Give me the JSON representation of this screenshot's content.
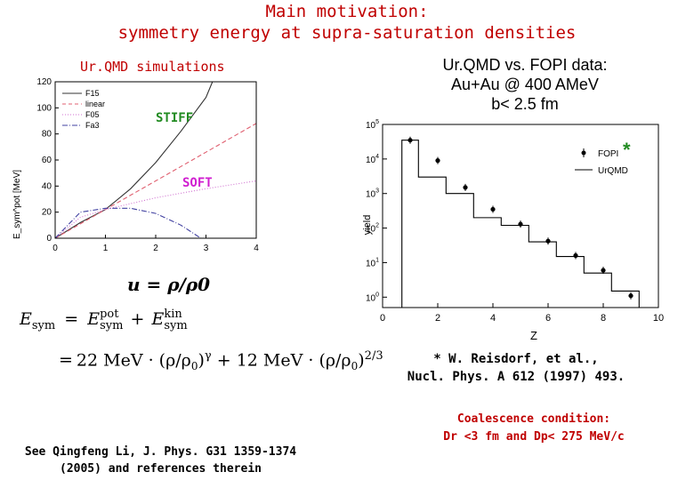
{
  "title": {
    "line1": "Main motivation:",
    "line2": "symmetry energy at supra-saturation densities"
  },
  "left_heading": "Ur.QMD simulations",
  "fopi_heading": {
    "line1": "Ur.QMD vs. FOPI data:",
    "line2": "Au+Au @ 400 AMeV",
    "line3": "b< 2.5 fm"
  },
  "chart_data": [
    {
      "type": "line",
      "title": "",
      "xlabel": "u = ρ/ρ0",
      "ylabel": "E_sym^pot [MeV]",
      "xlim": [
        0,
        4
      ],
      "ylim": [
        0,
        120
      ],
      "xticks": [
        "0",
        "1",
        "2",
        "3",
        "4"
      ],
      "yticks": [
        "0",
        "20",
        "40",
        "60",
        "80",
        "100",
        "120"
      ],
      "legend_placement": "top-left",
      "annotations": [
        "STIFF",
        "SOFT"
      ],
      "series": [
        {
          "name": "F15",
          "color": "#333333",
          "style": "solid",
          "x": [
            0,
            0.5,
            1,
            1.5,
            2,
            2.5,
            3,
            3.13
          ],
          "y": [
            0,
            12,
            22,
            38,
            58,
            82,
            108,
            120
          ]
        },
        {
          "name": "linear",
          "color": "#e06070",
          "style": "dashed",
          "x": [
            0,
            1,
            2,
            3,
            4
          ],
          "y": [
            0,
            22,
            44,
            66,
            88
          ]
        },
        {
          "name": "F05",
          "color": "#d070d0",
          "style": "dotted",
          "x": [
            0,
            0.5,
            1,
            2,
            3,
            4
          ],
          "y": [
            0,
            16,
            22,
            31,
            38,
            44
          ]
        },
        {
          "name": "Fa3",
          "color": "#4040a0",
          "style": "dashdot",
          "x": [
            0,
            0.5,
            1,
            1.5,
            2,
            2.5,
            2.9
          ],
          "y": [
            0,
            20,
            23,
            23,
            19,
            10,
            0
          ]
        }
      ]
    },
    {
      "type": "scatter",
      "title": "",
      "xlabel": "Z",
      "ylabel": "yield",
      "xlim": [
        0,
        10
      ],
      "yscale": "log",
      "ylim": [
        0.5,
        100000
      ],
      "xticks": [
        "0",
        "2",
        "4",
        "6",
        "8",
        "10"
      ],
      "yticks": [
        {
          "base": "10",
          "exp": "0"
        },
        {
          "base": "10",
          "exp": "1"
        },
        {
          "base": "10",
          "exp": "2"
        },
        {
          "base": "10",
          "exp": "3"
        },
        {
          "base": "10",
          "exp": "4"
        },
        {
          "base": "10",
          "exp": "5"
        }
      ],
      "legend_placement": "top-right",
      "marker_note": "*",
      "series": [
        {
          "name": "FOPI",
          "kind": "points",
          "color": "#000000",
          "x": [
            1,
            2,
            3,
            4,
            5,
            6,
            7,
            8,
            9
          ],
          "y": [
            35000,
            9000,
            1500,
            350,
            130,
            42,
            16,
            6,
            1.1
          ]
        },
        {
          "name": "UrQMD",
          "kind": "step",
          "color": "#000000",
          "edges": [
            0.7,
            1.3,
            2.3,
            3.3,
            4.3,
            5.3,
            6.3,
            7.3,
            8.3,
            9.3
          ],
          "values": [
            35000,
            3000,
            1000,
            200,
            120,
            40,
            15,
            5,
            1.5
          ]
        }
      ]
    }
  ],
  "formula": {
    "lhs": "E",
    "lhs_sub": "sym",
    "eq": "=",
    "t1": "E",
    "t1_sup": "pot",
    "t1_sub": "sym",
    "plus": "+",
    "t2": "E",
    "t2_sup": "kin",
    "t2_sub": "sym",
    "line2_eq": "=",
    "line2_a": "22 MeV · (ρ/ρ",
    "line2_a_sub": "0",
    "line2_b": ")",
    "line2_b_sup": "γ",
    "line2_c": "+ 12 MeV · (ρ/ρ",
    "line2_c_sub": "0",
    "line2_d": ")",
    "line2_d_sup": "2/3"
  },
  "reference": {
    "line1": "* W. Reisdorf, et al.,",
    "line2": "Nucl. Phys. A 612 (1997) 493."
  },
  "coalescence": {
    "line1": "Coalescence condition:",
    "line2": "Dr <3 fm  and Dp< 275 MeV/c"
  },
  "see_also": {
    "line1": "See Qingfeng Li, J. Phys. G31 1359-1374",
    "line2": "(2005) and references therein"
  },
  "colors": {
    "title": "#c00000",
    "stiff": "#228b22",
    "soft": "#d020d0",
    "asterisk": "#228b22"
  }
}
